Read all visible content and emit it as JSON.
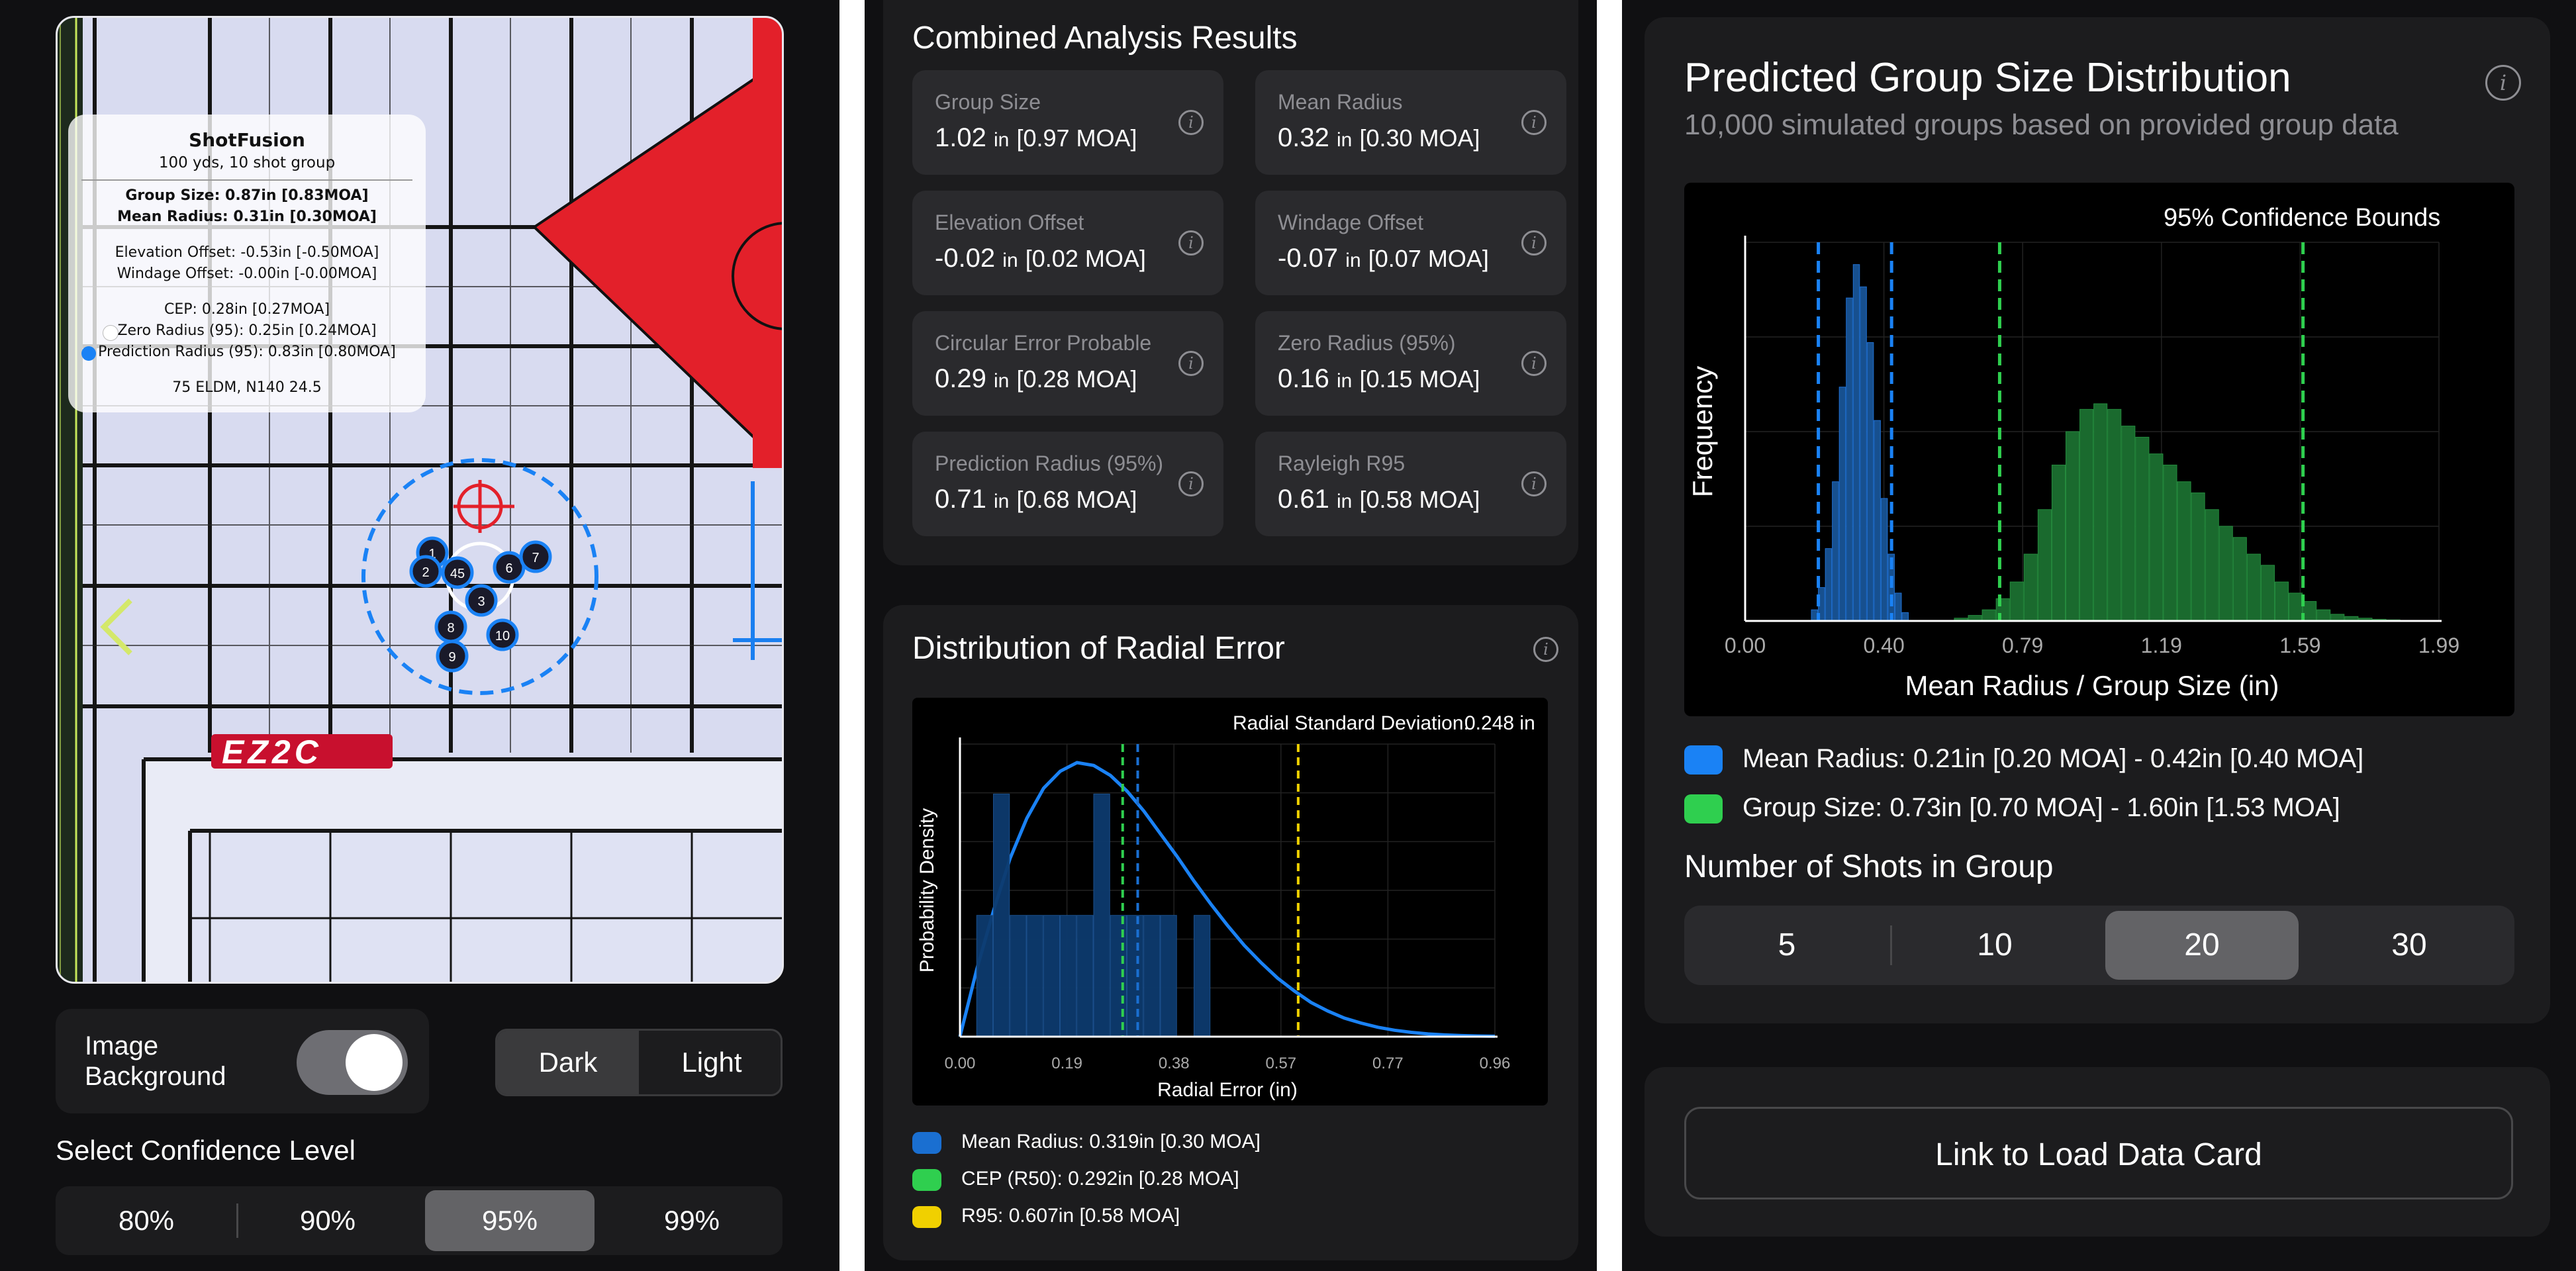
{
  "panel1": {
    "card": {
      "title": "ShotFusion",
      "subtitle": "100 yds, 10 shot group",
      "group_size": "Group Size: 0.87in [0.83MOA]",
      "mean_radius": "Mean Radius: 0.31in [0.30MOA]",
      "elevation_offset": "Elevation Offset: -0.53in [-0.50MOA]",
      "windage_offset": "Windage Offset: -0.00in [-0.00MOA]",
      "cep": "CEP: 0.28in [0.27MOA]",
      "zero_radius": "Zero Radius (95): 0.25in [0.24MOA]",
      "prediction_radius": "Prediction Radius (95): 0.83in [0.80MOA]",
      "ammo": "75 ELDM, N140 24.5"
    },
    "target_logo": "EZ2C",
    "shots": [
      "1",
      "2",
      "3",
      "45",
      "6",
      "7",
      "8",
      "9",
      "10"
    ],
    "image_background_label_1": "Image",
    "image_background_label_2": "Background",
    "image_background_on": true,
    "theme": {
      "dark": "Dark",
      "light": "Light",
      "selected": "Dark"
    },
    "confidence_title": "Select Confidence Level",
    "confidence_options": [
      "80%",
      "90%",
      "95%",
      "99%"
    ],
    "confidence_selected": "95%"
  },
  "panel2": {
    "results_title": "Combined Analysis Results",
    "metrics": [
      {
        "label": "Group Size",
        "value": "1.02",
        "unit": "in",
        "moa": "[0.97 MOA]"
      },
      {
        "label": "Mean Radius",
        "value": "0.32",
        "unit": "in",
        "moa": "[0.30 MOA]"
      },
      {
        "label": "Elevation Offset",
        "value": "-0.02",
        "unit": "in",
        "moa": "[0.02 MOA]"
      },
      {
        "label": "Windage Offset",
        "value": "-0.07",
        "unit": "in",
        "moa": "[0.07 MOA]"
      },
      {
        "label": "Circular Error Probable",
        "value": "0.29",
        "unit": "in",
        "moa": "[0.28 MOA]"
      },
      {
        "label": "Zero Radius (95%)",
        "value": "0.16",
        "unit": "in",
        "moa": "[0.15 MOA]"
      },
      {
        "label": "Prediction Radius (95%)",
        "value": "0.71",
        "unit": "in",
        "moa": "[0.68 MOA]"
      },
      {
        "label": "Rayleigh R95",
        "value": "0.61",
        "unit": "in",
        "moa": "[0.58 MOA]"
      }
    ],
    "dist_title": "Distribution of Radial Error",
    "chart_annotation_label": "Radial Standard Deviation:",
    "chart_annotation_value": "0.248 in",
    "legend": [
      {
        "label": "Mean Radius: 0.319in [0.30 MOA]",
        "color": "#1a6fd1"
      },
      {
        "label": "CEP (R50): 0.292in [0.28 MOA]",
        "color": "#2fcf4f"
      },
      {
        "label": "R95: 0.607in [0.58 MOA]",
        "color": "#f0d000"
      }
    ]
  },
  "panel3": {
    "title": "Predicted Group Size Distribution",
    "subtitle": "10,000 simulated groups based on provided group data",
    "chart_annotation": "95% Confidence Bounds",
    "legend": [
      {
        "label": "Mean Radius: 0.21in [0.20 MOA] - 0.42in [0.40 MOA]",
        "color": "#1a82f5"
      },
      {
        "label": "Group Size: 0.73in [0.70 MOA] - 1.60in [1.53 MOA]",
        "color": "#2fcf4f"
      }
    ],
    "shots_title": "Number of Shots in Group",
    "shots_options": [
      "5",
      "10",
      "20",
      "30"
    ],
    "shots_selected": "20",
    "link_button": "Link to Load Data Card"
  },
  "chart_data": [
    {
      "type": "line",
      "title": "",
      "annotation": "Radial Standard Deviation: 0.248 in",
      "xlabel": "Radial Error (in)",
      "ylabel": "Probability Density",
      "xticks": [
        "0.00",
        "0.19",
        "0.38",
        "0.57",
        "0.77",
        "0.96"
      ],
      "xlim": [
        0,
        0.96
      ],
      "grid": true,
      "series": [
        {
          "name": "",
          "kind": "curve",
          "color": "#1a82f5",
          "x": [
            0,
            0.03,
            0.06,
            0.09,
            0.12,
            0.15,
            0.18,
            0.21,
            0.24,
            0.27,
            0.3,
            0.33,
            0.36,
            0.39,
            0.42,
            0.45,
            0.48,
            0.51,
            0.54,
            0.57,
            0.6,
            0.63,
            0.66,
            0.69,
            0.72,
            0.75,
            0.78,
            0.81,
            0.84,
            0.87,
            0.9,
            0.93,
            0.96
          ],
          "y": [
            0,
            0.47,
            0.88,
            1.25,
            1.53,
            1.74,
            1.86,
            1.92,
            1.9,
            1.83,
            1.72,
            1.58,
            1.42,
            1.26,
            1.09,
            0.93,
            0.78,
            0.64,
            0.52,
            0.41,
            0.32,
            0.24,
            0.18,
            0.13,
            0.095,
            0.066,
            0.045,
            0.03,
            0.019,
            0.012,
            0.0075,
            0.0045,
            0.0026
          ]
        },
        {
          "name": "",
          "kind": "histogram",
          "color": "#0d3a6e",
          "x": [
            0.045,
            0.075,
            0.105,
            0.135,
            0.165,
            0.195,
            0.225,
            0.255,
            0.285,
            0.315,
            0.345,
            0.375,
            0.405,
            0.435
          ],
          "y": [
            1,
            2,
            1,
            1,
            1,
            1,
            1,
            2,
            1,
            1,
            1,
            1,
            0,
            1
          ]
        }
      ],
      "vlines": [
        {
          "name": "CEP (R50)",
          "x": 0.292,
          "color": "#2fcf4f"
        },
        {
          "name": "Mean Radius",
          "x": 0.319,
          "color": "#1a6fd1"
        },
        {
          "name": "R95",
          "x": 0.607,
          "color": "#f0d000"
        }
      ]
    },
    {
      "type": "bar",
      "title": "",
      "annotation": "95% Confidence Bounds",
      "xlabel": "Mean Radius / Group Size (in)",
      "ylabel": "Frequency",
      "xticks": [
        "0.00",
        "0.40",
        "0.79",
        "1.19",
        "1.59",
        "1.99"
      ],
      "xlim": [
        0,
        1.99
      ],
      "grid": true,
      "series": [
        {
          "name": "Mean Radius",
          "color": "#1a82f5",
          "x": [
            0.2,
            0.22,
            0.24,
            0.26,
            0.28,
            0.3,
            0.32,
            0.34,
            0.36,
            0.38,
            0.4,
            0.42,
            0.44,
            0.46
          ],
          "y": [
            20,
            60,
            130,
            250,
            420,
            580,
            640,
            600,
            500,
            360,
            220,
            120,
            50,
            15
          ]
        },
        {
          "name": "Group Size",
          "color": "#2fcf4f",
          "x": [
            0.62,
            0.66,
            0.7,
            0.74,
            0.78,
            0.82,
            0.86,
            0.9,
            0.94,
            0.98,
            1.02,
            1.06,
            1.1,
            1.14,
            1.18,
            1.22,
            1.26,
            1.3,
            1.34,
            1.38,
            1.42,
            1.46,
            1.5,
            1.54,
            1.58,
            1.62,
            1.66,
            1.7,
            1.74,
            1.78,
            1.82,
            1.86
          ],
          "y": [
            5,
            10,
            20,
            40,
            70,
            120,
            200,
            280,
            340,
            380,
            390,
            380,
            350,
            330,
            300,
            280,
            250,
            230,
            200,
            170,
            150,
            120,
            100,
            70,
            50,
            35,
            20,
            12,
            8,
            5,
            3,
            2
          ]
        }
      ],
      "vlines": [
        {
          "name": "Mean Radius low",
          "x": 0.21,
          "color": "#1a82f5"
        },
        {
          "name": "Mean Radius high",
          "x": 0.42,
          "color": "#1a82f5"
        },
        {
          "name": "Group Size low",
          "x": 0.73,
          "color": "#2fcf4f"
        },
        {
          "name": "Group Size high",
          "x": 1.6,
          "color": "#2fcf4f"
        }
      ]
    }
  ]
}
